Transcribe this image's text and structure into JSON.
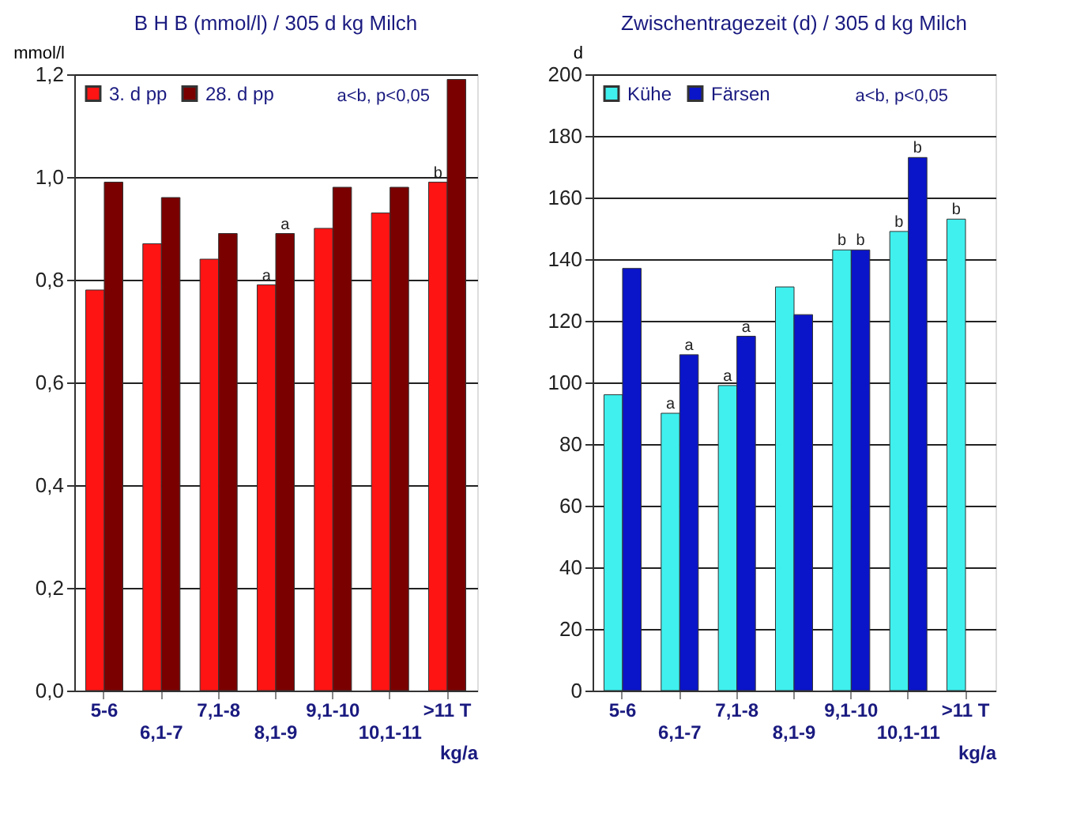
{
  "chart_data": [
    {
      "type": "bar",
      "title": "B H B (mmol/l) / 305 d kg Milch",
      "ylabel": "mmol/l",
      "xlabel": "kg/a",
      "categories": [
        "5-6",
        "6,1-7",
        "7,1-8",
        "8,1-9",
        "9,1-10",
        "10,1-11",
        ">11 T"
      ],
      "series": [
        {
          "name": "3. d pp",
          "color": "#ff1414",
          "values": [
            0.78,
            0.87,
            0.84,
            0.79,
            0.9,
            0.93,
            0.99
          ]
        },
        {
          "name": "28. d pp",
          "color": "#7a0000",
          "values": [
            0.99,
            0.96,
            0.89,
            0.89,
            0.98,
            0.98,
            1.19
          ]
        }
      ],
      "ylim": [
        0,
        1.2
      ],
      "yticks": [
        {
          "value": 0,
          "label": "0,0"
        },
        {
          "value": 0.2,
          "label": "0,2"
        },
        {
          "value": 0.4,
          "label": "0,4"
        },
        {
          "value": 0.6,
          "label": "0,6"
        },
        {
          "value": 0.8,
          "label": "0,8"
        },
        {
          "value": 1.0,
          "label": "1,0"
        },
        {
          "value": 1.2,
          "label": "1,2"
        }
      ],
      "grid": "y",
      "legend": "top left",
      "annotations": [
        "a<b, p<0,05",
        {
          "text": "a",
          "x": "8,1-9",
          "y": 0.79
        },
        {
          "text": "a",
          "x": "8,1-9",
          "y": 0.89
        },
        {
          "text": "b",
          "x": ">11 T",
          "y": 0.99
        }
      ]
    },
    {
      "type": "bar",
      "title": "Zwischentragezeit (d) / 305 d kg Milch",
      "ylabel": "d",
      "xlabel": "kg/a",
      "categories": [
        "5-6",
        "6,1-7",
        "7,1-8",
        "8,1-9",
        "9,1-10",
        "10,1-11",
        ">11 T"
      ],
      "series": [
        {
          "name": "Kühe",
          "color": "#3ff0ee",
          "values": [
            96,
            90,
            99,
            131,
            143,
            149,
            153
          ]
        },
        {
          "name": "Färsen",
          "color": "#0a14c8",
          "values": [
            137,
            109,
            115,
            122,
            143,
            173,
            null
          ]
        }
      ],
      "ylim": [
        0,
        200
      ],
      "yticks": [
        0,
        20,
        40,
        60,
        80,
        100,
        120,
        140,
        160,
        180,
        200
      ],
      "grid": "y",
      "legend": "top left",
      "annotations": [
        "a<b, p<0,05",
        {
          "text": "a",
          "x": "6,1-7",
          "y": 90
        },
        {
          "text": "a",
          "x": "6,1-7",
          "y": 109
        },
        {
          "text": "a",
          "x": "7,1-8",
          "y": 99
        },
        {
          "text": "a",
          "x": "7,1-8",
          "y": 115
        },
        {
          "text": "b",
          "x": "9,1-10",
          "y": 143
        },
        {
          "text": "b",
          "x": "9,1-10",
          "y": 143
        },
        {
          "text": "b",
          "x": "10,1-11",
          "y": 149
        },
        {
          "text": "b",
          "x": "10,1-11",
          "y": 173
        },
        {
          "text": "b",
          "x": ">11 T",
          "y": 153
        }
      ]
    }
  ]
}
